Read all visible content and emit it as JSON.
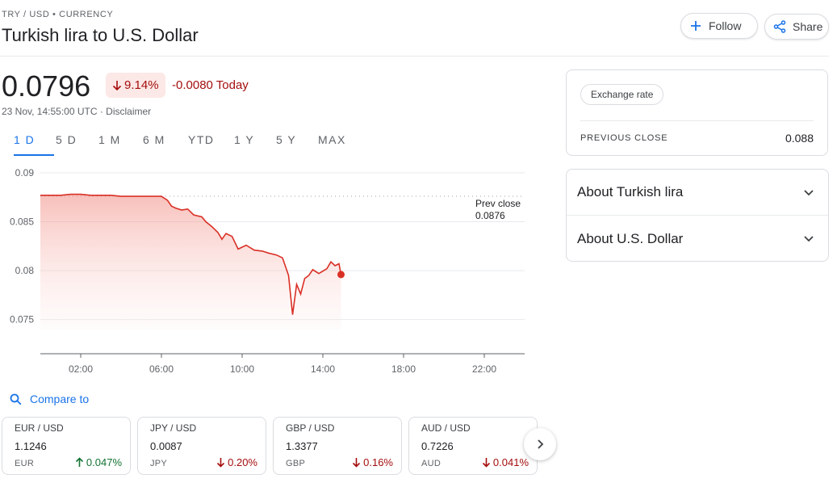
{
  "header": {
    "breadcrumb": "TRY / USD • CURRENCY",
    "title": "Turkish lira to U.S. Dollar",
    "follow_label": "Follow",
    "share_label": "Share"
  },
  "quote": {
    "price": "0.0796",
    "change_pct": "9.14%",
    "change_abs": "-0.0080 Today",
    "timestamp": "23 Nov, 14:55:00 UTC · Disclaimer",
    "down_color": "#a50e0e"
  },
  "ranges": [
    "1 D",
    "5 D",
    "1 M",
    "6 M",
    "YTD",
    "1 Y",
    "5 Y",
    "MAX"
  ],
  "active_range": "1 D",
  "prev_close": {
    "label": "Prev close",
    "value": "0.0876"
  },
  "chart_data": {
    "type": "line",
    "title": "",
    "xlabel": "",
    "ylabel": "",
    "x_ticks": [
      "02:00",
      "06:00",
      "10:00",
      "14:00",
      "18:00",
      "22:00"
    ],
    "y_ticks": [
      "0.09",
      "0.085",
      "0.08",
      "0.075"
    ],
    "ylim": [
      0.0715,
      0.09
    ],
    "xlim_hours": [
      0,
      24
    ],
    "prev_close": 0.0876,
    "line_color": "#d93025",
    "grid": true,
    "series": [
      {
        "x": [
          0,
          0.5,
          1,
          1.5,
          2,
          2.5,
          3,
          3.5,
          4,
          4.5,
          5,
          5.5,
          6,
          6.3,
          6.5,
          6.7,
          7,
          7.3,
          7.6,
          8,
          8.2,
          8.5,
          8.8,
          9,
          9.2,
          9.5,
          9.8,
          10.2,
          10.6,
          11,
          11.3,
          11.7,
          12,
          12.3,
          12.5,
          12.7,
          12.9,
          13.1,
          13.3,
          13.5,
          13.8,
          14.2,
          14.4,
          14.6,
          14.8,
          14.9
        ],
        "y": [
          0.0877,
          0.0877,
          0.0877,
          0.0878,
          0.0878,
          0.0877,
          0.0877,
          0.0877,
          0.0876,
          0.0876,
          0.0876,
          0.0876,
          0.0876,
          0.0872,
          0.0866,
          0.0864,
          0.0862,
          0.0863,
          0.0857,
          0.0855,
          0.085,
          0.0845,
          0.0839,
          0.0832,
          0.0838,
          0.0835,
          0.0822,
          0.0826,
          0.0821,
          0.082,
          0.0818,
          0.0816,
          0.0813,
          0.0795,
          0.0755,
          0.0786,
          0.0776,
          0.0792,
          0.0795,
          0.0801,
          0.0797,
          0.0802,
          0.0809,
          0.0805,
          0.0807,
          0.0796
        ]
      }
    ]
  },
  "compare": {
    "label": "Compare to"
  },
  "cards": [
    {
      "pair": "EUR / USD",
      "value": "1.1246",
      "currency": "EUR",
      "change": "0.047%",
      "direction": "up"
    },
    {
      "pair": "JPY / USD",
      "value": "0.0087",
      "currency": "JPY",
      "change": "0.20%",
      "direction": "down"
    },
    {
      "pair": "GBP / USD",
      "value": "1.3377",
      "currency": "GBP",
      "change": "0.16%",
      "direction": "down"
    },
    {
      "pair": "AUD / USD",
      "value": "0.7226",
      "currency": "AUD",
      "change": "0.041%",
      "direction": "down"
    }
  ],
  "side": {
    "chip": "Exchange rate",
    "prev_close_label": "PREVIOUS CLOSE",
    "prev_close_value": "0.088",
    "about_1": "About Turkish lira",
    "about_2": "About U.S. Dollar"
  },
  "icons": {
    "follow": "plus-icon",
    "share": "share-icon",
    "compare": "search-icon",
    "next": "chevron-right-icon",
    "expand": "chevron-down-icon"
  }
}
